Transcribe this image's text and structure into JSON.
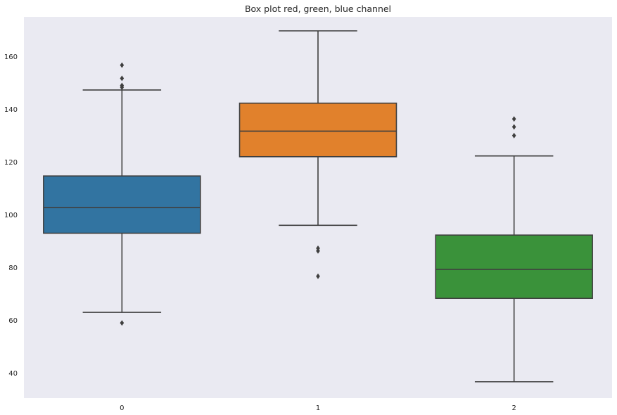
{
  "chart_data": {
    "type": "box",
    "title": "Box plot red, green, blue channel",
    "xlabel": "",
    "ylabel": "",
    "categories": [
      "0",
      "1",
      "2"
    ],
    "yticks": [
      40,
      60,
      80,
      100,
      120,
      140,
      160
    ],
    "ylim": [
      30.5,
      175
    ],
    "grid": false,
    "background_color": "#eaeaf2",
    "edge_color": "#3f3f3f",
    "boxes": [
      {
        "category": "0",
        "color": "#3274a1",
        "whisker_low": 63,
        "q1": 93,
        "median": 102.7,
        "q3": 114.7,
        "whisker_high": 147.3,
        "outliers": [
          59,
          148.3,
          149,
          151.7,
          156.7
        ]
      },
      {
        "category": "1",
        "color": "#e1812c",
        "whisker_low": 96,
        "q1": 122,
        "median": 131.7,
        "q3": 142.3,
        "whisker_high": 169.7,
        "outliers": [
          76.7,
          86.3,
          87.3
        ]
      },
      {
        "category": "2",
        "color": "#3a923a",
        "whisker_low": 36.7,
        "q1": 68.3,
        "median": 79.3,
        "q3": 92.3,
        "whisker_high": 122.3,
        "outliers": [
          130,
          133.3,
          136.3
        ]
      }
    ]
  }
}
